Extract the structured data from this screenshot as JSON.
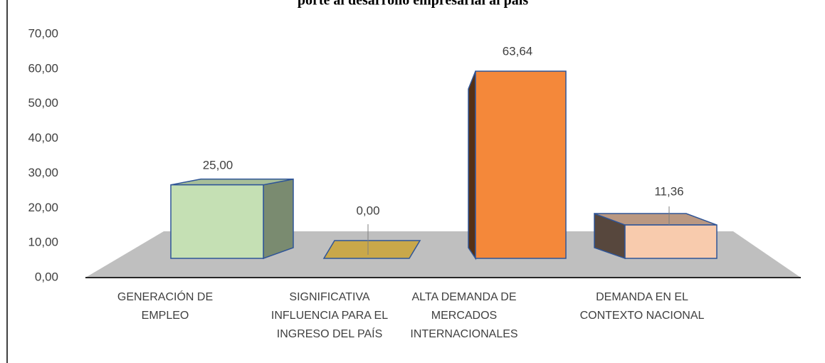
{
  "chart_data": {
    "type": "bar3d",
    "title": "porte al desarrollo empresarial al país",
    "categories": [
      "GENERACIÓN DE EMPLEO",
      "SIGNIFICATIVA INFLUENCIA PARA EL INGRESO DEL PAÍS",
      "ALTA DEMANDA DE MERCADOS INTERNACIONALES",
      "DEMANDA EN EL CONTEXTO NACIONAL"
    ],
    "values": [
      25,
      0,
      63.64,
      11.36
    ],
    "value_labels": [
      "25,00",
      "0,00",
      "63,64",
      "11,36"
    ],
    "colors": [
      "#c5e0b4",
      "#c9a84a",
      "#f4883a",
      "#f8cbad"
    ],
    "ylim": [
      0,
      70
    ],
    "yticks": [
      {
        "value": 0,
        "label": "0,00"
      },
      {
        "value": 10,
        "label": "10,00"
      },
      {
        "value": 20,
        "label": "20,00"
      },
      {
        "value": 30,
        "label": "30,00"
      },
      {
        "value": 40,
        "label": "40,00"
      },
      {
        "value": 50,
        "label": "50,00"
      },
      {
        "value": 60,
        "label": "60,00"
      },
      {
        "value": 70,
        "label": "70,00"
      }
    ]
  }
}
